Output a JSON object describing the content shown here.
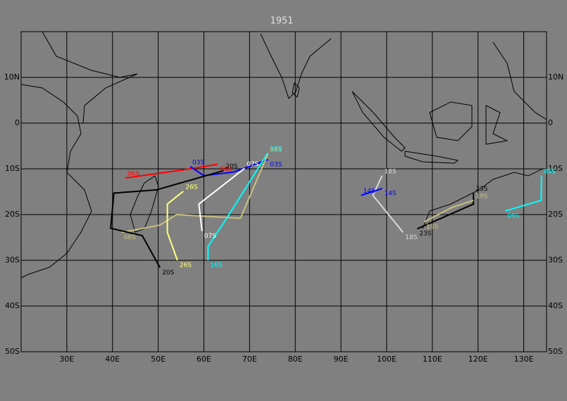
{
  "title": "1951",
  "map": {
    "lonlim": [
      20,
      135
    ],
    "latlim": [
      -50,
      20
    ],
    "lonticks": [
      {
        "value": 30,
        "label": "30E"
      },
      {
        "value": 40,
        "label": "40E"
      },
      {
        "value": 50,
        "label": "50E"
      },
      {
        "value": 60,
        "label": "60E"
      },
      {
        "value": 70,
        "label": "70E"
      },
      {
        "value": 80,
        "label": "80E"
      },
      {
        "value": 90,
        "label": "90E"
      },
      {
        "value": 100,
        "label": "100E"
      },
      {
        "value": 110,
        "label": "110E"
      },
      {
        "value": 120,
        "label": "120E"
      },
      {
        "value": 130,
        "label": "130E"
      }
    ],
    "latticks": [
      {
        "value": 10,
        "label": "10N"
      },
      0,
      {
        "value": -10,
        "label": "10S"
      },
      {
        "value": -20,
        "label": "20S"
      },
      {
        "value": -30,
        "label": "30S"
      },
      {
        "value": -40,
        "label": "40S"
      },
      {
        "value": -50,
        "label": "50S"
      }
    ],
    "tracks": [
      {
        "name": "06S",
        "color": "#ff0000",
        "lon": [
          42.8,
          50,
          57,
          63
        ],
        "lat": [
          -12,
          -11,
          -10,
          -9
        ]
      },
      {
        "name": "03S",
        "color": "#0000ff",
        "lon": [
          57,
          60,
          66.5,
          74
        ],
        "lat": [
          -9.5,
          -11.5,
          -10.7,
          -8
        ]
      },
      {
        "name": "16S",
        "color": "#00ffff",
        "lon": [
          74,
          65,
          60.9,
          60.9
        ],
        "lat": [
          -6.5,
          -20.8,
          -27,
          -30
        ]
      },
      {
        "name": "08S",
        "color": "#c8c080",
        "lon": [
          74,
          68,
          54,
          50.4,
          42
        ],
        "lat": [
          -6.8,
          -20.8,
          -20,
          -22.3,
          -23.9
        ]
      },
      {
        "name": "20S",
        "color": "#000000",
        "lon": [
          64.3,
          49.6,
          40.3,
          39.6,
          46.5,
          50.4
        ],
        "lat": [
          -10.4,
          -14.6,
          -15.3,
          -23,
          -24.6,
          -31.6
        ]
      },
      {
        "name": "26S",
        "color": "#ffff80",
        "lon": [
          55.5,
          52,
          52,
          54.2
        ],
        "lat": [
          -14.9,
          -17.7,
          -23.9,
          -30
        ]
      },
      {
        "name": "07S",
        "color": "#ffffff",
        "lon": [
          68.9,
          58.9,
          59.6
        ],
        "lat": [
          -9.9,
          -17.7,
          -23.6
        ]
      },
      {
        "name": "18S",
        "color": "#d8d8d8",
        "lon": [
          99,
          97,
          103.6
        ],
        "lat": [
          -11.5,
          -15.8,
          -23.9
        ]
      },
      {
        "name": "14S",
        "color": "#0000ff",
        "lon": [
          94.4,
          99
        ],
        "lat": [
          -15.8,
          -14.3
        ]
      },
      {
        "name": "23S",
        "color": "#000000",
        "lon": [
          119,
          119,
          106.7
        ],
        "lat": [
          -15.3,
          -17.7,
          -23.1
        ]
      },
      {
        "name": "19S",
        "color": "#c8c080",
        "lon": [
          119,
          114.4,
          108.2
        ],
        "lat": [
          -16.9,
          -18.4,
          -21.6
        ]
      },
      {
        "name": "05S",
        "color": "#00ffff",
        "lon": [
          133.9,
          133.8,
          126
        ],
        "lat": [
          -11.5,
          -16.9,
          -19.2
        ]
      }
    ]
  }
}
